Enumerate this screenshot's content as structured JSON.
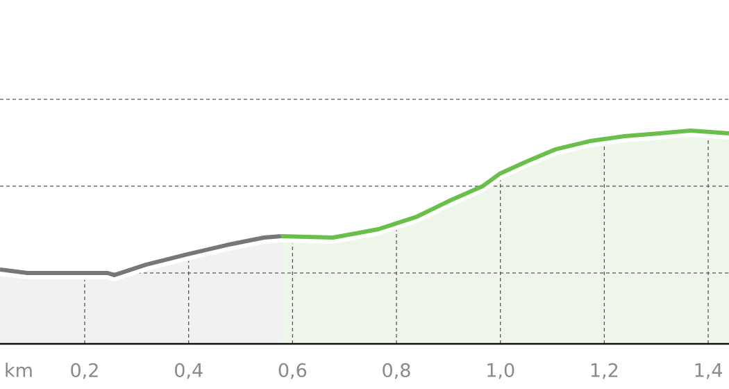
{
  "chart_data": {
    "type": "line",
    "x_label": "km",
    "xlim": [
      0.037,
      1.44
    ],
    "ylim": [
      0.184,
      4.144
    ],
    "xticks": [
      {
        "value": 0.2,
        "label": "0,2"
      },
      {
        "value": 0.4,
        "label": "0,4"
      },
      {
        "value": 0.6,
        "label": "0,6"
      },
      {
        "value": 0.8,
        "label": "0,8"
      },
      {
        "value": 1.0,
        "label": "1,0"
      },
      {
        "value": 1.2,
        "label": "1,2"
      },
      {
        "value": 1.4,
        "label": "1,4"
      }
    ],
    "yticks": [
      1,
      2,
      3
    ],
    "grid": true,
    "series": [
      {
        "color": "#777777",
        "area_color": "#f1f1f1",
        "x": [
          0.037,
          0.09,
          0.244,
          0.257,
          0.318,
          0.398,
          0.478,
          0.545,
          0.578
        ],
        "values": [
          1.04,
          1.0,
          1.0,
          0.976,
          1.096,
          1.216,
          1.328,
          1.408,
          1.424
        ]
      },
      {
        "color": "#6abf4b",
        "area_color": "#eef6ea",
        "x": [
          0.578,
          0.678,
          0.765,
          0.839,
          0.905,
          0.966,
          0.999,
          1.052,
          1.106,
          1.173,
          1.239,
          1.306,
          1.366,
          1.44
        ],
        "values": [
          1.424,
          1.408,
          1.504,
          1.648,
          1.84,
          2.0,
          2.144,
          2.288,
          2.424,
          2.52,
          2.576,
          2.608,
          2.64,
          2.608
        ]
      }
    ]
  }
}
